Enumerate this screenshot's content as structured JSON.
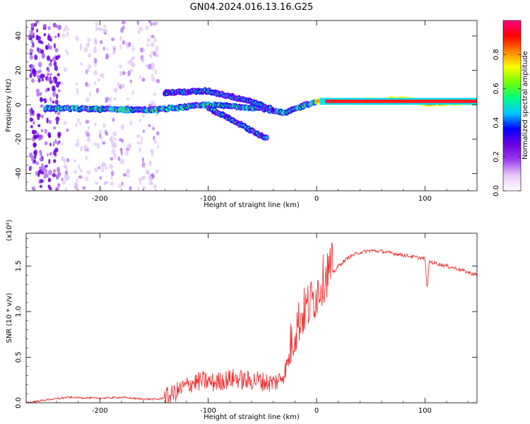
{
  "title": "GN04.2024.016.13.16.G25",
  "chart_data": [
    {
      "type": "heatmap",
      "xlabel": "Height of straight line (km)",
      "ylabel": "Frequency (Hz)",
      "xlim": [
        -268,
        148
      ],
      "ylim": [
        -50,
        49
      ],
      "xticks": [
        -200,
        -100,
        0,
        100
      ],
      "yticks": [
        -40,
        -20,
        0,
        20,
        40
      ],
      "xtick_labels": [
        "-200",
        "-100",
        "0",
        "100"
      ],
      "ytick_labels": [
        "-40",
        "-20",
        "0",
        "20",
        "40"
      ],
      "colorbar": {
        "label": "Normalized spectral amplitude",
        "range": [
          0,
          1
        ],
        "ticks": [
          "0.0",
          "0.2",
          "0.4",
          "0.6",
          "0.8"
        ],
        "colors": [
          "#ffffff",
          "#e8c8f8",
          "#9a3cf0",
          "#6a00e0",
          "#0000ff",
          "#00c8ff",
          "#00ff80",
          "#70ff00",
          "#ffff00",
          "#ff8000",
          "#ff0000",
          "#ff0080"
        ]
      },
      "features": [
        {
          "name": "main line",
          "points": [
            [
              -250,
              -2
            ],
            [
              -150,
              -3
            ],
            [
              -100,
              0
            ],
            [
              -50,
              -2
            ],
            [
              -30,
              -5
            ],
            [
              -10,
              0
            ],
            [
              0,
              2
            ],
            [
              40,
              2
            ],
            [
              80,
              3
            ],
            [
              100,
              1
            ],
            [
              148,
              2
            ]
          ]
        },
        {
          "name": "upper branch",
          "points": [
            [
              -140,
              7
            ],
            [
              -100,
              8
            ],
            [
              -80,
              5
            ],
            [
              -60,
              2
            ],
            [
              -40,
              -3
            ]
          ]
        },
        {
          "name": "lower branch",
          "points": [
            [
              -100,
              -2
            ],
            [
              -80,
              -8
            ],
            [
              -60,
              -15
            ],
            [
              -45,
              -20
            ]
          ]
        }
      ]
    },
    {
      "type": "line",
      "xlabel": "Height of straight line (km)",
      "ylabel": "SNR (10 * v/v)",
      "y_multiplier": "(x10⁴)",
      "xlim": [
        -268,
        148
      ],
      "ylim": [
        0,
        1.86
      ],
      "xticks": [
        -200,
        -100,
        0,
        100
      ],
      "yticks": [
        0.0,
        0.5,
        1.0,
        1.5
      ],
      "xtick_labels": [
        "-200",
        "-100",
        "0",
        "100"
      ],
      "ytick_labels": [
        "0.0",
        "0.5",
        "1.0",
        "1.5"
      ],
      "series": [
        {
          "color": "#ee3333",
          "x": [
            -268,
            -250,
            -230,
            -200,
            -180,
            -160,
            -145,
            -135,
            -125,
            -115,
            -105,
            -95,
            -85,
            -75,
            -65,
            -55,
            -45,
            -40,
            -35,
            -30,
            -25,
            -20,
            -15,
            -10,
            -5,
            0,
            5,
            10,
            15,
            20,
            25,
            30,
            40,
            50,
            60,
            70,
            80,
            90,
            100,
            102,
            104,
            110,
            120,
            130,
            140,
            148
          ],
          "y": [
            0.0,
            0.03,
            0.06,
            0.05,
            0.06,
            0.04,
            0.04,
            0.08,
            0.15,
            0.22,
            0.24,
            0.22,
            0.25,
            0.27,
            0.24,
            0.25,
            0.22,
            0.22,
            0.25,
            0.32,
            0.5,
            0.7,
            0.85,
            0.95,
            1.02,
            1.12,
            1.25,
            1.35,
            1.42,
            1.5,
            1.55,
            1.6,
            1.65,
            1.67,
            1.66,
            1.64,
            1.62,
            1.6,
            1.58,
            1.25,
            1.55,
            1.53,
            1.5,
            1.47,
            1.43,
            1.4
          ]
        }
      ]
    }
  ]
}
